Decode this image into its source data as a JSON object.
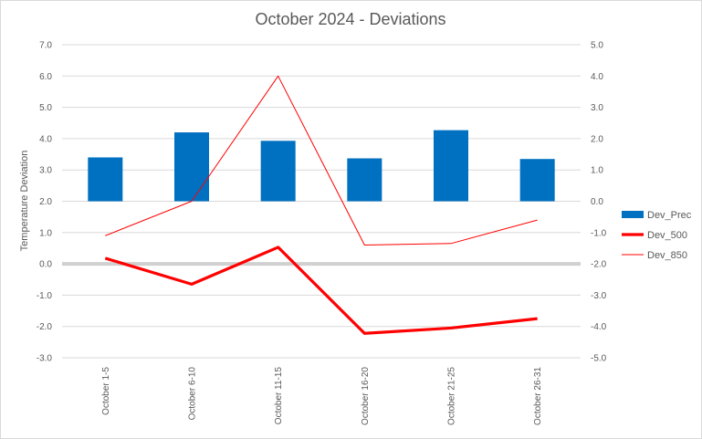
{
  "chart_data": {
    "type": "bar",
    "title": "October 2024 - Deviations",
    "ylabel": "Temperature Deviation",
    "xlabel": "",
    "categories": [
      "October 1-5",
      "October 6-10",
      "October 11-15",
      "October 16-20",
      "October 21-25",
      "October 26-31"
    ],
    "ylim": [
      -3.0,
      7.0
    ],
    "y2lim": [
      -5.0,
      5.0
    ],
    "yticks": [
      "7.0",
      "6.0",
      "5.0",
      "4.0",
      "3.0",
      "2.0",
      "1.0",
      "0.0",
      "-1.0",
      "-2.0",
      "-3.0"
    ],
    "y2ticks": [
      "5.0",
      "4.0",
      "3.0",
      "2.0",
      "1.0",
      "0.0",
      "-1.0",
      "-2.0",
      "-3.0",
      "-4.0",
      "-5.0"
    ],
    "grid": true,
    "legend_position": "right",
    "series": [
      {
        "name": "Dev_Prec",
        "kind": "bar",
        "axis": "left",
        "color": "#0070C0",
        "values": [
          3.4,
          4.2,
          3.93,
          3.37,
          4.27,
          3.35
        ]
      },
      {
        "name": "Dev_500",
        "kind": "line",
        "axis": "left",
        "color": "#FF0000",
        "weight": "thick",
        "values": [
          0.18,
          -0.65,
          0.53,
          -2.22,
          -2.05,
          -1.75
        ]
      },
      {
        "name": "Dev_850",
        "kind": "line",
        "axis": "right",
        "color": "#FF0000",
        "weight": "thin",
        "values": [
          -1.1,
          0.0,
          4.0,
          -1.4,
          -1.35,
          -0.6
        ]
      }
    ]
  }
}
